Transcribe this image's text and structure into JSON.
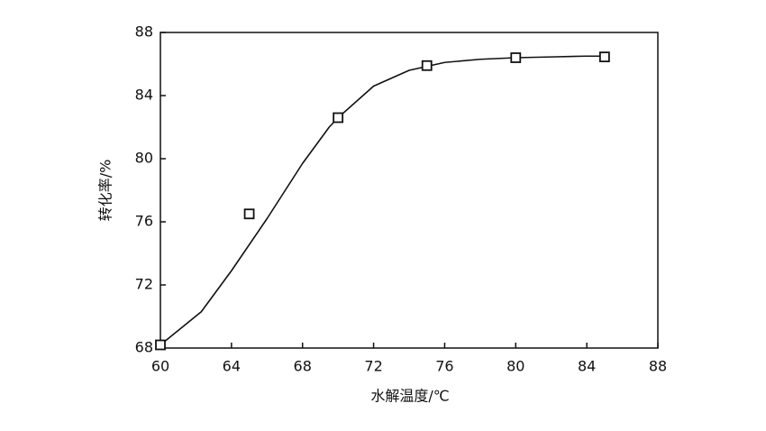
{
  "chart_data": {
    "type": "scatter",
    "x_label": "水解温度/℃",
    "y_label": "转化率/%",
    "xlim": [
      60,
      88
    ],
    "xticks": [
      60,
      64,
      68,
      72,
      76,
      80,
      84,
      88
    ],
    "ylim": [
      68,
      88
    ],
    "yticks": [
      68,
      72,
      76,
      80,
      84,
      88
    ],
    "color": "#111111",
    "series": [
      {
        "type": "line",
        "x": [
          60,
          62.3,
          64,
          66,
          68,
          69.5,
          70,
          72,
          74,
          76,
          78,
          80,
          82,
          84,
          85
        ],
        "values": [
          68.2,
          70.3,
          72.9,
          76.2,
          79.7,
          82.0,
          82.6,
          84.6,
          85.6,
          86.1,
          86.3,
          86.4,
          86.45,
          86.5,
          86.5
        ]
      },
      {
        "type": "scatter",
        "x": [
          60,
          65,
          70,
          75,
          80,
          85
        ],
        "values": [
          68.2,
          76.5,
          82.6,
          85.9,
          86.4,
          86.45
        ]
      }
    ]
  }
}
